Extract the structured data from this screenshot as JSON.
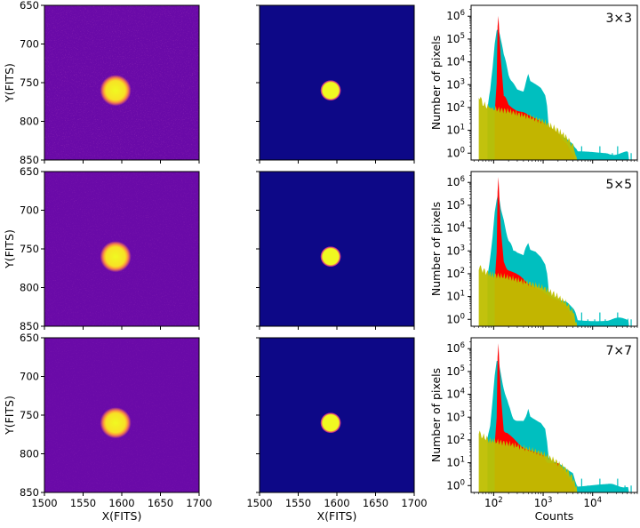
{
  "chart_data": [
    {
      "type": "heatmap",
      "panel": "raw-image",
      "rows": [
        "3×3",
        "5×5",
        "7×7"
      ],
      "xlabel": "X(FITS)",
      "ylabel": "Y(FITS)",
      "xlim": [
        1500,
        1700
      ],
      "ylim": [
        850,
        650
      ],
      "xticks": [
        "1500",
        "1550",
        "1600",
        "1650",
        "1700"
      ],
      "yticks": [
        "650",
        "700",
        "750",
        "800",
        "850"
      ],
      "source_center": [
        1592,
        760
      ],
      "source_radius": 13,
      "colormap": "plasma",
      "background_color": "#6a0aa8",
      "source_color": "#f0f921"
    },
    {
      "type": "heatmap",
      "panel": "model-image",
      "rows": [
        "3×3",
        "5×5",
        "7×7"
      ],
      "xlabel": "X(FITS)",
      "xlim": [
        1500,
        1700
      ],
      "ylim": [
        850,
        650
      ],
      "xticks": [
        "1500",
        "1550",
        "1600",
        "1650",
        "1700"
      ],
      "source_center": [
        1592,
        760
      ],
      "source_radius": 11,
      "colormap": "plasma",
      "background_color": "#0d0887",
      "source_color": "#f0f921"
    },
    {
      "type": "bar",
      "panel": "histogram",
      "xscale": "log",
      "yscale": "log",
      "xlabel": "Counts",
      "ylabel": "Number of pixels",
      "xlim": [
        35,
        80000
      ],
      "ylim": [
        0.5,
        3000000
      ],
      "xticks": [
        "10^2",
        "10^3",
        "10^4"
      ],
      "yticks": [
        "10^0",
        "10^1",
        "10^2",
        "10^3",
        "10^4",
        "10^5",
        "10^6"
      ],
      "panels": [
        {
          "label": "3×3",
          "series": [
            {
              "name": "cyan",
              "color": "#00bfbf",
              "x": [
                75,
                85,
                95,
                105,
                115,
                125,
                140,
                160,
                200,
                250,
                300,
                400,
                500,
                550,
                700,
                900,
                1100,
                1200,
                1300,
                1500,
                2000,
                3000,
                4000,
                5000,
                10000,
                20000,
                50000
              ],
              "y": [
                100,
                500,
                5000,
                60000,
                200000,
                250000,
                80000,
                20000,
                3000,
                1000,
                700,
                600,
                2500,
                1200,
                900,
                600,
                300,
                100,
                15,
                10,
                8,
                5,
                3,
                1,
                1,
                1,
                1
              ]
            },
            {
              "name": "red",
              "color": "#ff0000",
              "x": [
                105,
                115,
                120,
                125,
                130,
                140,
                160,
                200,
                300,
                500,
                1000,
                1200,
                2000,
                3000,
                4000
              ],
              "y": [
                60,
                1000,
                300000,
                1000000,
                200000,
                10000,
                300,
                150,
                80,
                40,
                20,
                12,
                8,
                3,
                1
              ]
            },
            {
              "name": "yellow",
              "color": "#bfbf00",
              "x": [
                50,
                60,
                80,
                100,
                200,
                500,
                1000,
                1500,
                2000,
                3000,
                4000,
                4500
              ],
              "y": [
                350,
                150,
                100,
                90,
                70,
                40,
                25,
                15,
                10,
                5,
                2,
                1
              ]
            }
          ]
        },
        {
          "label": "5×5",
          "series": [
            {
              "name": "cyan",
              "color": "#00bfbf",
              "x": [
                75,
                85,
                95,
                105,
                115,
                125,
                140,
                160,
                200,
                250,
                300,
                400,
                500,
                550,
                700,
                900,
                1100,
                1200,
                1300,
                1500,
                2000,
                3000,
                4000,
                5000,
                10000,
                20000,
                50000
              ],
              "y": [
                100,
                500,
                5000,
                60000,
                200000,
                300000,
                80000,
                20000,
                3000,
                1000,
                700,
                600,
                2500,
                1200,
                900,
                600,
                300,
                100,
                15,
                10,
                8,
                5,
                3,
                1,
                1,
                1,
                1
              ]
            },
            {
              "name": "red",
              "color": "#ff0000",
              "x": [
                105,
                115,
                120,
                125,
                130,
                140,
                160,
                200,
                300,
                500,
                1000,
                1200,
                2000,
                3000,
                4000
              ],
              "y": [
                60,
                1000,
                400000,
                1500000,
                200000,
                10000,
                300,
                150,
                80,
                40,
                20,
                12,
                8,
                3,
                1
              ]
            },
            {
              "name": "yellow",
              "color": "#bfbf00",
              "x": [
                50,
                60,
                80,
                100,
                200,
                500,
                1000,
                1500,
                2000,
                3000,
                4000,
                4500
              ],
              "y": [
                200,
                150,
                100,
                90,
                70,
                40,
                25,
                15,
                10,
                5,
                2,
                1
              ]
            }
          ]
        },
        {
          "label": "7×7",
          "series": [
            {
              "name": "cyan",
              "color": "#00bfbf",
              "x": [
                75,
                85,
                95,
                105,
                115,
                125,
                140,
                160,
                200,
                250,
                300,
                400,
                500,
                550,
                700,
                900,
                1100,
                1200,
                1300,
                1500,
                2000,
                3000,
                4000,
                5000,
                10000,
                20000,
                50000
              ],
              "y": [
                100,
                500,
                5000,
                60000,
                300000,
                400000,
                80000,
                20000,
                3000,
                1000,
                700,
                600,
                2500,
                1200,
                900,
                600,
                300,
                100,
                15,
                10,
                8,
                5,
                3,
                1,
                1,
                1,
                1
              ]
            },
            {
              "name": "red",
              "color": "#ff0000",
              "x": [
                105,
                115,
                120,
                125,
                130,
                140,
                160,
                200,
                300,
                500,
                1000,
                1200,
                2000,
                3000,
                4000
              ],
              "y": [
                60,
                1000,
                500000,
                2000000,
                200000,
                10000,
                300,
                150,
                80,
                40,
                20,
                12,
                8,
                3,
                1
              ]
            },
            {
              "name": "yellow",
              "color": "#bfbf00",
              "x": [
                50,
                60,
                80,
                100,
                200,
                500,
                1000,
                1500,
                2000,
                3000,
                4000,
                4500
              ],
              "y": [
                200,
                150,
                100,
                90,
                70,
                40,
                25,
                15,
                10,
                5,
                2,
                1
              ]
            }
          ]
        }
      ]
    }
  ],
  "labels": {
    "xlabel_images": "X(FITS)",
    "ylabel_images": "Y(FITS)",
    "xlabel_hist": "Counts",
    "ylabel_hist": "Number of pixels",
    "row_labels": [
      "3×3",
      "5×5",
      "7×7"
    ]
  }
}
